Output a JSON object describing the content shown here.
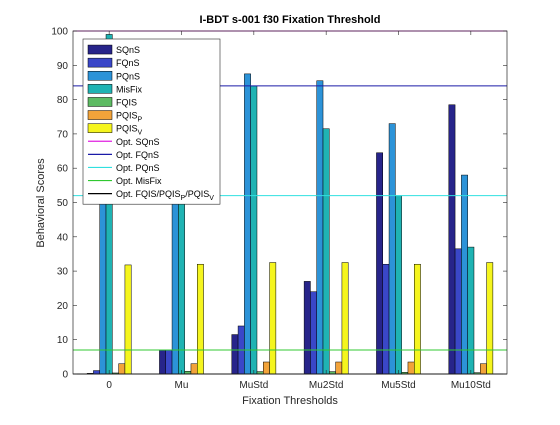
{
  "chart_data": {
    "type": "bar",
    "title": "I-BDT s-001 f30 Fixation Threshold",
    "xlabel": "Fixation Thresholds",
    "ylabel": "Behavioral Scores",
    "ylim": [
      0,
      100
    ],
    "yticks": [
      0,
      10,
      20,
      30,
      40,
      50,
      60,
      70,
      80,
      90,
      100
    ],
    "categories": [
      "0",
      "Mu",
      "MuStd",
      "Mu2Std",
      "Mu5Std",
      "Mu10Std"
    ],
    "grid": false,
    "legend_position": "top-left",
    "series": [
      {
        "name": "SQnS",
        "color": "#27248a",
        "values": [
          0.2,
          7,
          11.5,
          27,
          64.5,
          78.5
        ]
      },
      {
        "name": "FQnS",
        "color": "#3a47c8",
        "values": [
          1,
          7,
          14,
          24,
          32,
          36.5
        ]
      },
      {
        "name": "PQnS",
        "color": "#2c93d8",
        "values": [
          97.5,
          62,
          87.5,
          85.5,
          73,
          58
        ]
      },
      {
        "name": "MisFix",
        "color": "#1fb3b3",
        "values": [
          99,
          63,
          84,
          71.5,
          52,
          37
        ]
      },
      {
        "name": "FQIS",
        "color": "#5dbb63",
        "values": [
          0.3,
          0.8,
          0.7,
          0.7,
          0.5,
          0.4
        ]
      },
      {
        "name": "PQISP",
        "label_base": "PQIS",
        "label_sub": "P",
        "color": "#f2a33a",
        "values": [
          3,
          3,
          3.5,
          3.5,
          3.5,
          3
        ]
      },
      {
        "name": "PQISV",
        "label_base": "PQIS",
        "label_sub": "V",
        "color": "#f5f51e",
        "values": [
          31.8,
          32,
          32.5,
          32.5,
          32,
          32.5
        ]
      }
    ],
    "reference_lines": [
      {
        "name": "Opt. SQnS",
        "color": "#e020e0",
        "value": 100
      },
      {
        "name": "Opt. FQnS",
        "color": "#1a1aa8",
        "value": 84
      },
      {
        "name": "Opt. PQnS",
        "color": "#30e0e0",
        "value": 52
      },
      {
        "name": "Opt. MisFix",
        "color": "#30c830",
        "value": 7
      },
      {
        "name": "Opt. FQIS/PQISP/PQISV",
        "color": "#000000",
        "value": 0
      }
    ],
    "legend": [
      {
        "kind": "bar",
        "base": "SQnS",
        "sub": ""
      },
      {
        "kind": "bar",
        "base": "FQnS",
        "sub": ""
      },
      {
        "kind": "bar",
        "base": "PQnS",
        "sub": ""
      },
      {
        "kind": "bar",
        "base": "MisFix",
        "sub": ""
      },
      {
        "kind": "bar",
        "base": "FQIS",
        "sub": ""
      },
      {
        "kind": "bar",
        "base": "PQIS",
        "sub": "P"
      },
      {
        "kind": "bar",
        "base": "PQIS",
        "sub": "V"
      },
      {
        "kind": "line",
        "base": "Opt. SQnS",
        "sub": ""
      },
      {
        "kind": "line",
        "base": "Opt. FQnS",
        "sub": ""
      },
      {
        "kind": "line",
        "base": "Opt. PQnS",
        "sub": ""
      },
      {
        "kind": "line",
        "base": "Opt. MisFix",
        "sub": ""
      },
      {
        "kind": "line",
        "base": "Opt. FQIS/PQIS",
        "sub": "P",
        "base2": "/PQIS",
        "sub2": "V"
      }
    ]
  }
}
